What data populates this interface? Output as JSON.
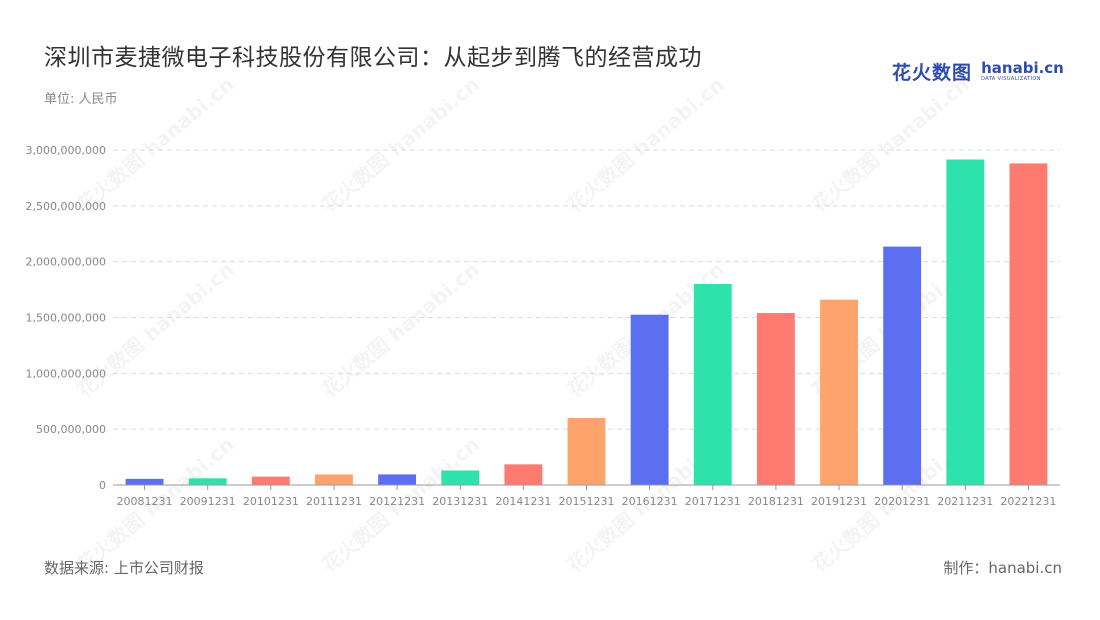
{
  "title": "深圳市麦捷微电子科技股份有限公司：从起步到腾飞的经营成功",
  "unit_label": "单位: 人民币",
  "logo": {
    "cn": "花火数图",
    "en": "hanabi.cn",
    "en_sub": "DATA VISUALIZATION"
  },
  "watermark": "花火数图 hanabi.cn",
  "source": "数据来源: 上市公司财报",
  "credit": "制作：hanabi.cn",
  "colors": [
    "#5b6ff0",
    "#2de3ab",
    "#ff7b72",
    "#ffa36c"
  ],
  "chart_data": {
    "type": "bar",
    "categories": [
      "20081231",
      "20091231",
      "20101231",
      "20111231",
      "20121231",
      "20131231",
      "20141231",
      "20151231",
      "20161231",
      "20171231",
      "20181231",
      "20191231",
      "20201231",
      "20211231",
      "20221231"
    ],
    "values": [
      55000000,
      60000000,
      75000000,
      95000000,
      95000000,
      130000000,
      185000000,
      600000000,
      1525000000,
      1800000000,
      1540000000,
      1660000000,
      2135000000,
      2915000000,
      2880000000
    ],
    "ylim": [
      0,
      3000000000
    ],
    "yticks": [
      0,
      500000000,
      1000000000,
      1500000000,
      2000000000,
      2500000000,
      3000000000
    ],
    "ytick_labels": [
      "0",
      "500,000,000",
      "1,000,000,000",
      "1,500,000,000",
      "2,000,000,000",
      "2,500,000,000",
      "3,000,000,000"
    ],
    "grid": true,
    "xlabel": "",
    "ylabel": ""
  }
}
